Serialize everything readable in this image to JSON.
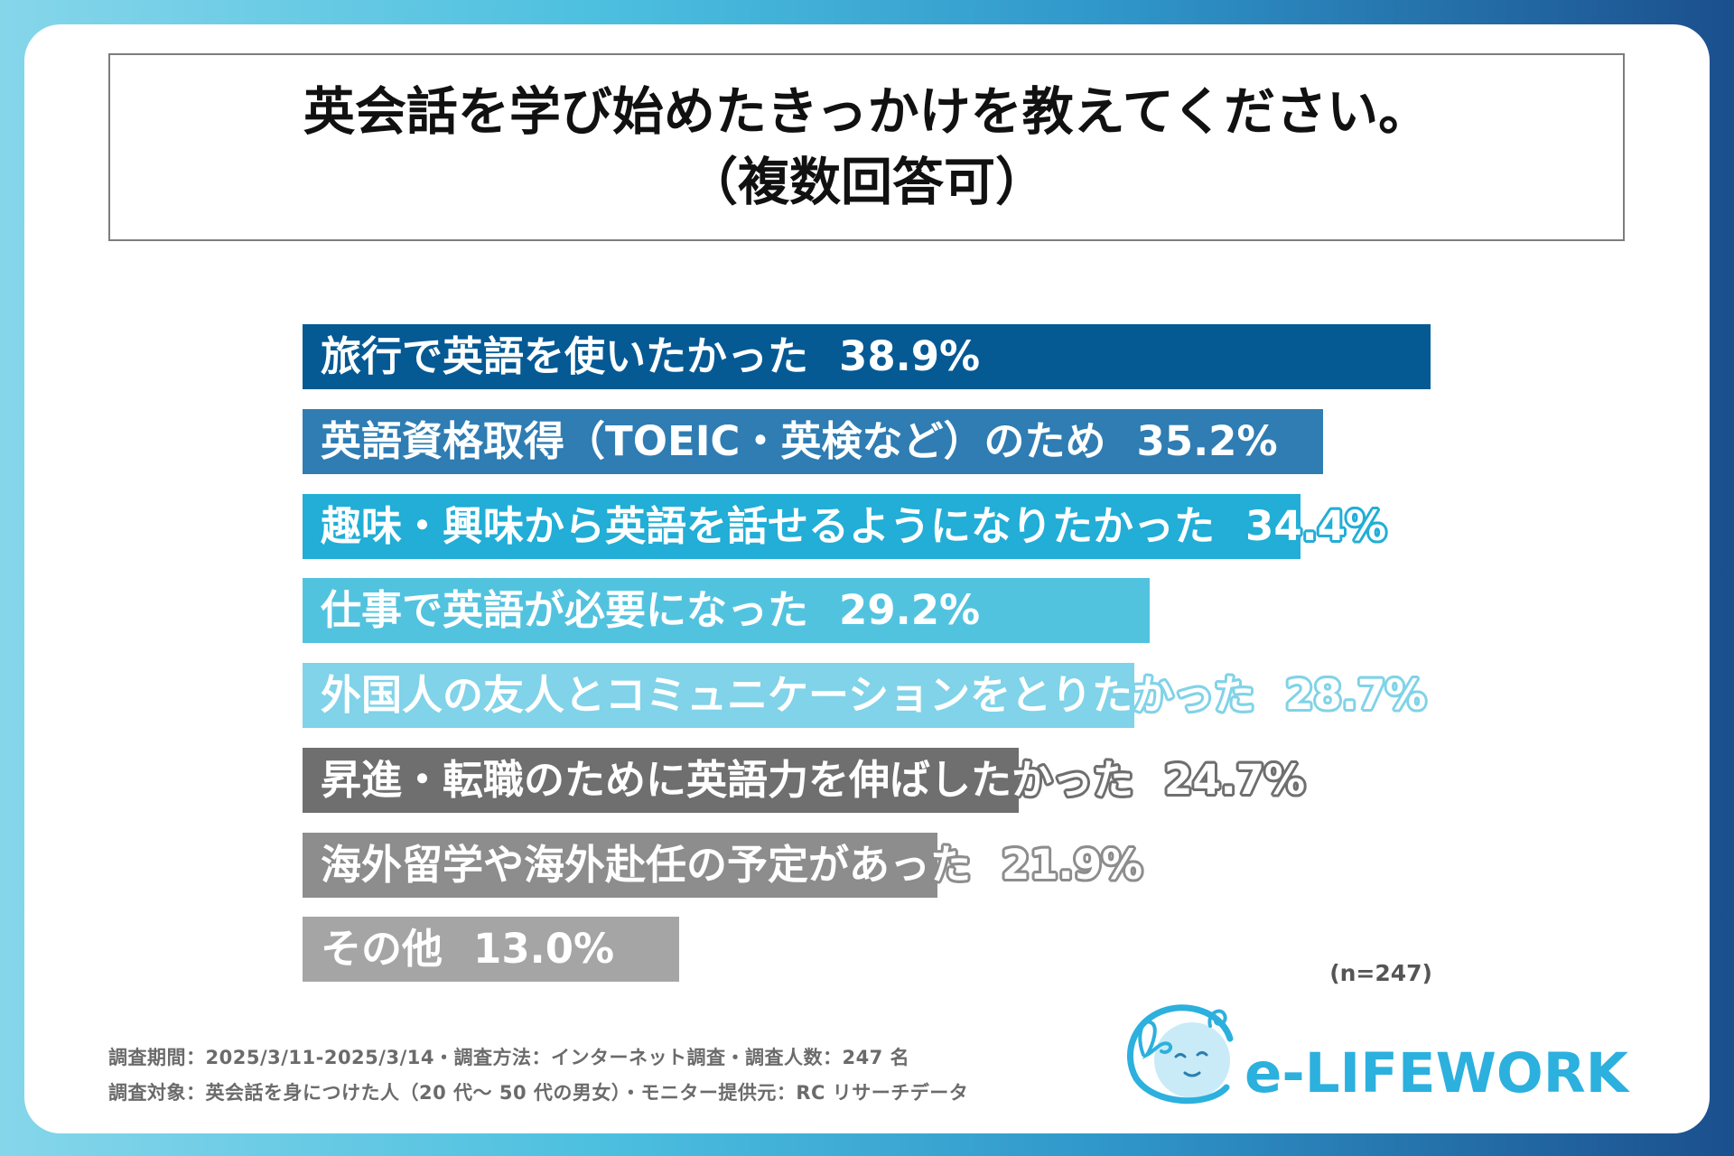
{
  "title": {
    "line1": "英会話を学び始めたきっかけを教えてください。",
    "line2": "（複数回答可）"
  },
  "chart_data": {
    "type": "bar",
    "orientation": "horizontal",
    "categories": [
      "旅行で英語を使いたかった",
      "英語資格取得（TOEIC・英検など）のため",
      "趣味・興味から英語を話せるようになりたかった",
      "仕事で英語が必要になった",
      "外国人の友人とコミュニケーションをとりたかった",
      "昇進・転職のために英語力を伸ばしたかった",
      "海外留学や海外赴任の予定があった",
      "その他"
    ],
    "values": [
      38.9,
      35.2,
      34.4,
      29.2,
      28.7,
      24.7,
      21.9,
      13.0
    ],
    "value_labels": [
      "38.9%",
      "35.2%",
      "34.4%",
      "29.2%",
      "28.7%",
      "24.7%",
      "21.9%",
      "13.0%"
    ],
    "colors": [
      "#055a94",
      "#2f7db3",
      "#22aed6",
      "#52c3df",
      "#80d3e8",
      "#6f6f6f",
      "#8d8d8d",
      "#a5a5a5"
    ],
    "sample_note": "(n=247)"
  },
  "footer": {
    "line1": "調査期間：2025/3/11-2025/3/14・調査方法：インターネット調査・調査人数：247 名",
    "line2": "調査対象：英会話を身につけた人（20 代～ 50 代の男女）・モニター提供元：RC リサーチデータ"
  },
  "logo": {
    "text": "e-LIFEWORK",
    "color": "#2cb0de"
  }
}
